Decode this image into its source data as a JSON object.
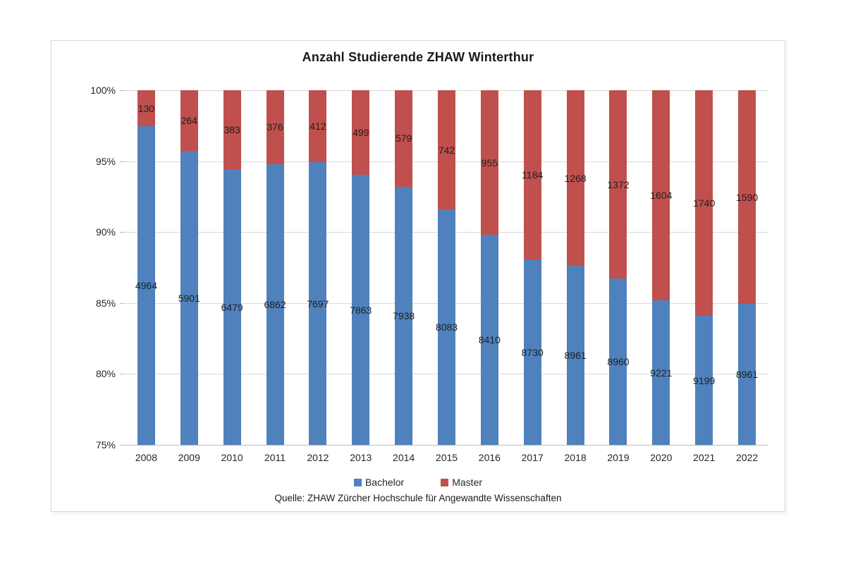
{
  "title": "Anzahl Studierende ZHAW Winterthur",
  "source": "Quelle: ZHAW Zürcher Hochschule für Angewandte Wissenschaften",
  "colors": {
    "bachelor": "#4F81BD",
    "master": "#C0504D",
    "gridline": "#d9d9d9",
    "axis": "#bdbdbd",
    "text": "#262626"
  },
  "chart_data": {
    "type": "bar",
    "stacked": true,
    "percent_stacked": true,
    "title": "Anzahl Studierende ZHAW Winterthur",
    "xlabel": "",
    "ylabel": "",
    "categories": [
      "2008",
      "2009",
      "2010",
      "2011",
      "2012",
      "2013",
      "2014",
      "2015",
      "2016",
      "2017",
      "2018",
      "2019",
      "2020",
      "2021",
      "2022"
    ],
    "series": [
      {
        "name": "Bachelor",
        "color": "#4F81BD",
        "values": [
          4964,
          5901,
          6479,
          6862,
          7697,
          7863,
          7938,
          8083,
          8410,
          8730,
          8961,
          8960,
          9221,
          9199,
          8961
        ]
      },
      {
        "name": "Master",
        "color": "#C0504D",
        "values": [
          130,
          264,
          383,
          376,
          412,
          499,
          579,
          742,
          955,
          1184,
          1268,
          1372,
          1604,
          1740,
          1590
        ]
      }
    ],
    "y_axis": {
      "min": 75,
      "max": 100,
      "unit": "%",
      "ticks": [
        {
          "label": "100%",
          "value": 100
        },
        {
          "label": "95%",
          "value": 95
        },
        {
          "label": "90%",
          "value": 90
        },
        {
          "label": "85%",
          "value": 85
        },
        {
          "label": "80%",
          "value": 80
        },
        {
          "label": "75%",
          "value": 75
        }
      ]
    },
    "gridlines": true,
    "legend_position": "bottom",
    "data_labels": "shown on every segment (raw counts)"
  }
}
